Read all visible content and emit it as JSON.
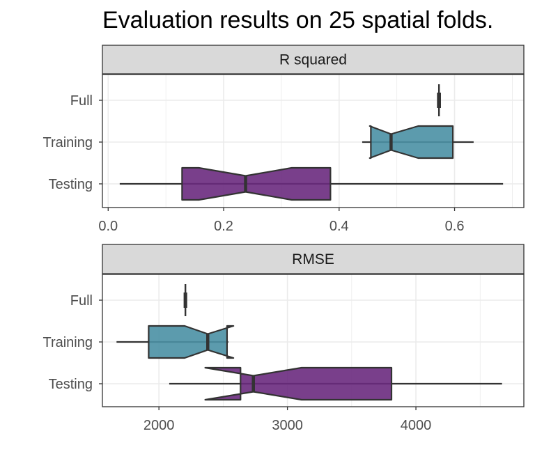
{
  "chart_data": {
    "title": "Evaluation results on 25 spatial folds.",
    "type": "boxplot",
    "orientation": "horizontal",
    "notched": true,
    "grid": true,
    "colors": {
      "Training": "#4a90a4",
      "Testing": "#6a2a7e",
      "Full": "#444444"
    },
    "categories": [
      "Full",
      "Training",
      "Testing"
    ],
    "panels": [
      {
        "strip": "R squared",
        "xlim": [
          -0.01,
          0.72
        ],
        "xticks": [
          0.0,
          0.2,
          0.4,
          0.6
        ],
        "xtick_labels": [
          "0.0",
          "0.2",
          "0.4",
          "0.6"
        ],
        "boxes": [
          {
            "category": "Full",
            "min": 0.571,
            "q1": 0.572,
            "median": 0.573,
            "q3": 0.574,
            "max": 0.575,
            "notch_low": 0.572,
            "notch_high": 0.574
          },
          {
            "category": "Training",
            "min": 0.44,
            "q1": 0.455,
            "median": 0.49,
            "q3": 0.597,
            "max": 0.633,
            "notch_low": 0.453,
            "notch_high": 0.537
          },
          {
            "category": "Testing",
            "min": 0.02,
            "q1": 0.128,
            "median": 0.238,
            "q3": 0.385,
            "max": 0.684,
            "notch_low": 0.157,
            "notch_high": 0.318
          }
        ]
      },
      {
        "strip": "RMSE",
        "xlim": [
          1560,
          4840
        ],
        "xticks": [
          2000,
          3000,
          4000
        ],
        "xtick_labels": [
          "2000",
          "3000",
          "4000"
        ],
        "boxes": [
          {
            "category": "Full",
            "min": 2200,
            "q1": 2203,
            "median": 2206,
            "q3": 2209,
            "max": 2212,
            "notch_low": 2203,
            "notch_high": 2209
          },
          {
            "category": "Training",
            "min": 1670,
            "q1": 1920,
            "median": 2380,
            "q3": 2530,
            "max": 2540,
            "notch_low": 2200,
            "notch_high": 2580
          },
          {
            "category": "Testing",
            "min": 2080,
            "q1": 2635,
            "median": 2735,
            "q3": 3810,
            "max": 4670,
            "notch_low": 2360,
            "notch_high": 3110
          }
        ]
      }
    ]
  }
}
